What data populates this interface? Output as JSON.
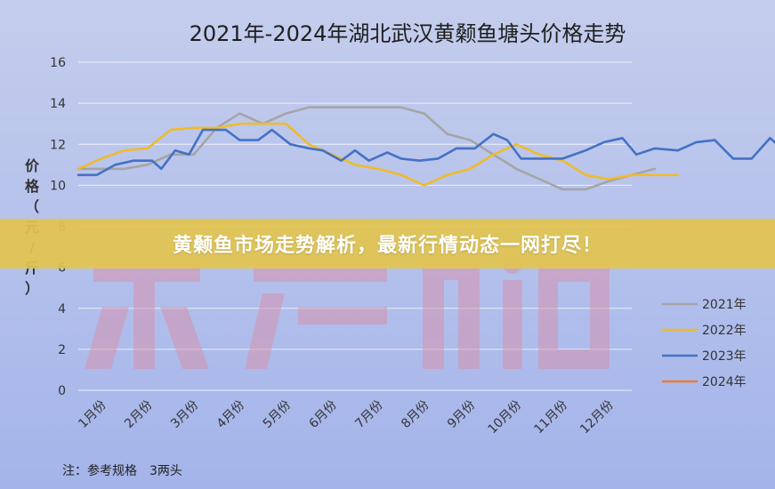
{
  "chart_data": {
    "type": "line",
    "title": "2021年-2024年湖北武汉黄颡鱼塘头价格走势",
    "ylabel": "价格（元/斤）",
    "xlabel": "",
    "categories": [
      "1月份",
      "2月份",
      "3月份",
      "4月份",
      "5月份",
      "6月份",
      "7月份",
      "8月份",
      "9月份",
      "10月份",
      "11月份",
      "12月份"
    ],
    "ylim": [
      0,
      16
    ],
    "yticks": [
      0,
      2,
      4,
      6,
      8,
      10,
      12,
      14,
      16
    ],
    "grid": true,
    "legend_position": "right",
    "series": [
      {
        "name": "2021年",
        "color": "#a5a5a5",
        "points": [
          [
            0,
            10.8
          ],
          [
            0.5,
            10.8
          ],
          [
            1,
            10.8
          ],
          [
            1.5,
            11.0
          ],
          [
            2,
            11.5
          ],
          [
            2.5,
            11.5
          ],
          [
            3,
            12.8
          ],
          [
            3.5,
            13.5
          ],
          [
            4,
            13.0
          ],
          [
            4.5,
            13.5
          ],
          [
            5,
            13.8
          ],
          [
            5.5,
            13.8
          ],
          [
            6,
            13.8
          ],
          [
            7,
            13.8
          ],
          [
            7.5,
            13.5
          ],
          [
            8,
            12.5
          ],
          [
            8.5,
            12.2
          ],
          [
            9,
            11.5
          ],
          [
            9.5,
            10.8
          ],
          [
            10,
            10.3
          ],
          [
            10.5,
            9.8
          ],
          [
            11,
            9.8
          ],
          [
            11.5,
            10.2
          ],
          [
            12,
            10.5
          ],
          [
            12.5,
            10.8
          ]
        ]
      },
      {
        "name": "2022年",
        "color": "#f0bb2a",
        "points": [
          [
            0,
            10.8
          ],
          [
            0.5,
            11.3
          ],
          [
            1,
            11.7
          ],
          [
            1.5,
            11.8
          ],
          [
            2,
            12.7
          ],
          [
            2.5,
            12.8
          ],
          [
            3,
            12.8
          ],
          [
            3.5,
            13.0
          ],
          [
            4,
            13.0
          ],
          [
            4.5,
            13.0
          ],
          [
            5,
            12.0
          ],
          [
            5.5,
            11.5
          ],
          [
            6,
            11.0
          ],
          [
            6.5,
            10.8
          ],
          [
            7,
            10.5
          ],
          [
            7.5,
            10.0
          ],
          [
            8,
            10.5
          ],
          [
            8.5,
            10.8
          ],
          [
            9,
            11.5
          ],
          [
            9.5,
            12.0
          ],
          [
            10,
            11.5
          ],
          [
            10.5,
            11.2
          ],
          [
            11,
            10.5
          ],
          [
            11.5,
            10.3
          ],
          [
            12,
            10.5
          ],
          [
            12.5,
            10.5
          ],
          [
            13,
            10.5
          ]
        ]
      },
      {
        "name": "2023年",
        "color": "#4472c4",
        "points": [
          [
            0,
            10.5
          ],
          [
            0.4,
            10.5
          ],
          [
            0.8,
            11.0
          ],
          [
            1.2,
            11.2
          ],
          [
            1.6,
            11.2
          ],
          [
            1.8,
            10.8
          ],
          [
            2.1,
            11.7
          ],
          [
            2.4,
            11.5
          ],
          [
            2.7,
            12.7
          ],
          [
            3.2,
            12.7
          ],
          [
            3.5,
            12.2
          ],
          [
            3.9,
            12.2
          ],
          [
            4.2,
            12.7
          ],
          [
            4.6,
            12.0
          ],
          [
            5,
            11.8
          ],
          [
            5.3,
            11.7
          ],
          [
            5.7,
            11.2
          ],
          [
            6,
            11.7
          ],
          [
            6.3,
            11.2
          ],
          [
            6.7,
            11.6
          ],
          [
            7,
            11.3
          ],
          [
            7.4,
            11.2
          ],
          [
            7.8,
            11.3
          ],
          [
            8.2,
            11.8
          ],
          [
            8.6,
            11.8
          ],
          [
            9,
            12.5
          ],
          [
            9.3,
            12.2
          ],
          [
            9.6,
            11.3
          ],
          [
            10,
            11.3
          ],
          [
            10.5,
            11.3
          ],
          [
            11,
            11.7
          ],
          [
            11.4,
            12.1
          ],
          [
            11.8,
            12.3
          ],
          [
            12.1,
            11.5
          ],
          [
            12.5,
            11.8
          ],
          [
            13,
            11.7
          ],
          [
            13.4,
            12.1
          ],
          [
            13.8,
            12.2
          ],
          [
            14.2,
            11.3
          ],
          [
            14.6,
            11.3
          ],
          [
            15,
            12.3
          ],
          [
            15.3,
            11.7
          ]
        ]
      },
      {
        "name": "2024年",
        "color": "#ed7d31",
        "points": []
      }
    ]
  },
  "note": "注：参考规格　3两头",
  "banner": "黄颡鱼市场走势解析，最新行情动态一网打尽！"
}
